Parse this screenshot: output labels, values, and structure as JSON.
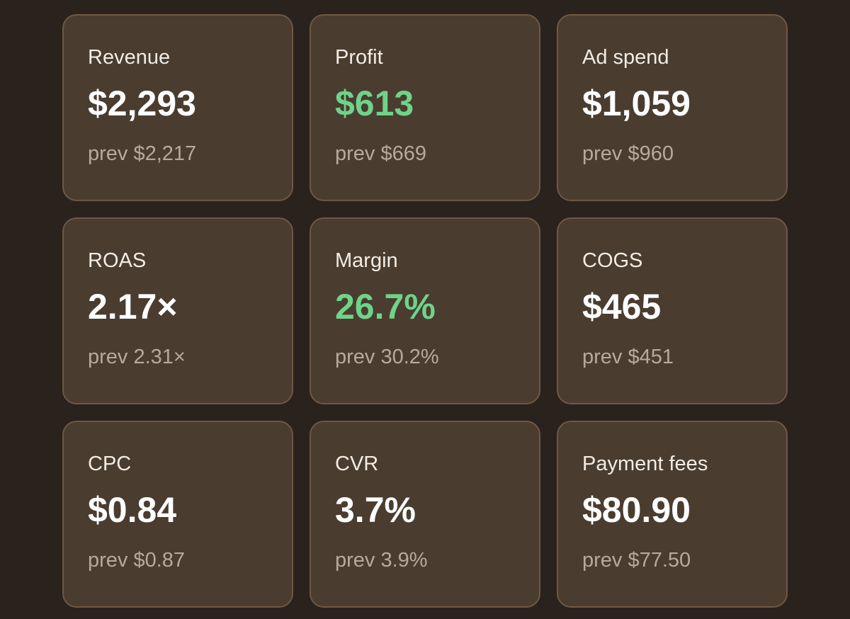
{
  "colors": {
    "background": "#2a221d",
    "card": "#4a3c2f",
    "card_border": "#6e5843",
    "positive": "#6fd38a",
    "muted": "#b7aa9c"
  },
  "metrics": [
    {
      "label": "Revenue",
      "value": "$2,293",
      "prev": "prev $2,217",
      "highlight": false
    },
    {
      "label": "Profit",
      "value": "$613",
      "prev": "prev $669",
      "highlight": true
    },
    {
      "label": "Ad spend",
      "value": "$1,059",
      "prev": "prev $960",
      "highlight": false
    },
    {
      "label": "ROAS",
      "value": "2.17×",
      "prev": "prev 2.31×",
      "highlight": false
    },
    {
      "label": "Margin",
      "value": "26.7%",
      "prev": "prev 30.2%",
      "highlight": true
    },
    {
      "label": "COGS",
      "value": "$465",
      "prev": "prev $451",
      "highlight": false
    },
    {
      "label": "CPC",
      "value": "$0.84",
      "prev": "prev $0.87",
      "highlight": false
    },
    {
      "label": "CVR",
      "value": "3.7%",
      "prev": "prev 3.9%",
      "highlight": false
    },
    {
      "label": "Payment fees",
      "value": "$80.90",
      "prev": "prev $77.50",
      "highlight": false
    }
  ]
}
